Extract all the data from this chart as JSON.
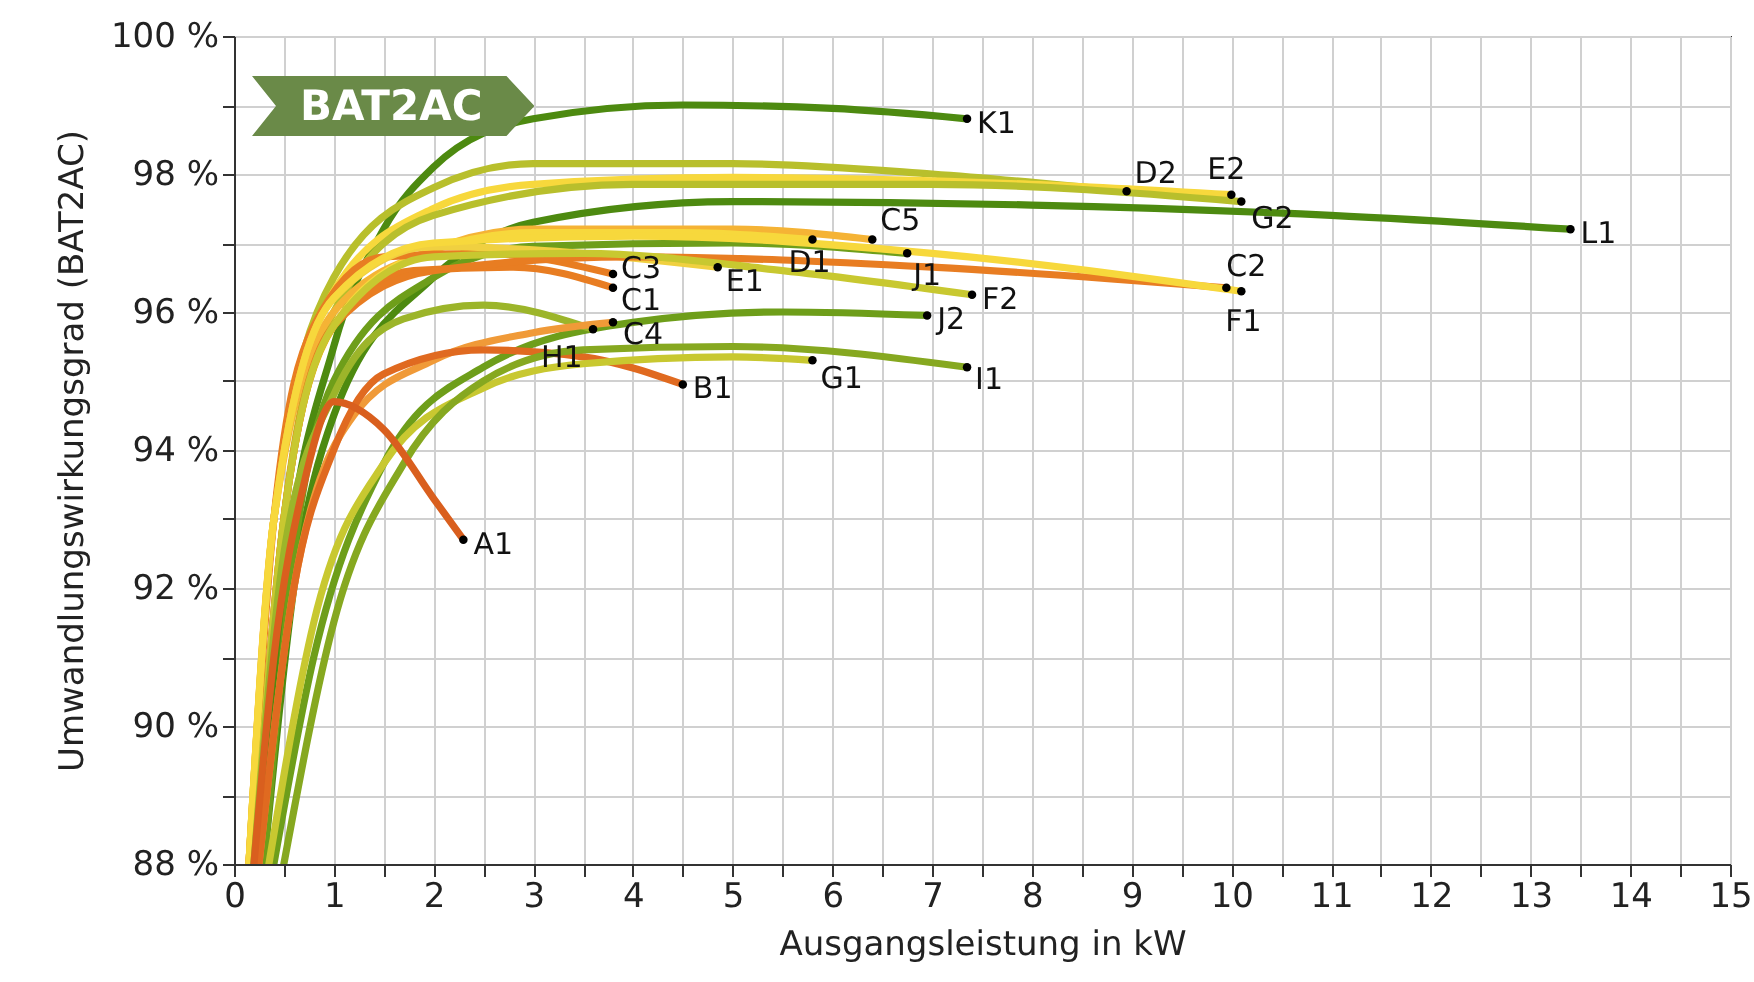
{
  "chart_data": {
    "type": "line",
    "title": "BAT2AC",
    "xlabel": "Ausgangsleistung in kW",
    "ylabel": "Umwandlungswirkungsgrad (BAT2AC)",
    "xlim": [
      0,
      15
    ],
    "xticks": [
      0,
      {
        "value": 0.5,
        "label": null
      },
      1,
      {
        "value": 1.5,
        "label": null
      },
      2,
      {
        "value": 2.5,
        "label": null
      },
      3,
      {
        "value": 3.5,
        "label": null
      },
      4,
      {
        "value": 4.5,
        "label": null
      },
      5,
      {
        "value": 5.5,
        "label": null
      },
      6,
      {
        "value": 6.5,
        "label": null
      },
      7,
      {
        "value": 7.5,
        "label": null
      },
      8,
      {
        "value": 8.5,
        "label": null
      },
      9,
      {
        "value": 9.5,
        "label": null
      },
      10,
      {
        "value": 10.5,
        "label": null
      },
      11,
      {
        "value": 11.5,
        "label": null
      },
      12,
      {
        "value": 12.5,
        "label": null
      },
      13,
      {
        "value": 13.5,
        "label": null
      },
      14,
      {
        "value": 14.5,
        "label": null
      },
      15
    ],
    "ylim": [
      88,
      100
    ],
    "yticks": [
      {
        "value": 88,
        "label": "88 %"
      },
      {
        "value": 89,
        "label": null
      },
      {
        "value": 90,
        "label": "90 %"
      },
      {
        "value": 91,
        "label": null
      },
      {
        "value": 92,
        "label": "92 %"
      },
      {
        "value": 93,
        "label": null
      },
      {
        "value": 94,
        "label": "94 %"
      },
      {
        "value": 95,
        "label": null
      },
      {
        "value": 96,
        "label": "96 %"
      },
      {
        "value": 97,
        "label": null
      },
      {
        "value": 98,
        "label": "98 %"
      },
      {
        "value": 99,
        "label": null
      },
      {
        "value": 100,
        "label": "100 %"
      }
    ],
    "grid": true,
    "line_style": "solid",
    "series": [
      {
        "name": "K1",
        "color": "#4d8a10",
        "x": [
          0.25,
          0.5,
          1,
          1.5,
          2,
          3,
          4.5,
          6,
          7.35
        ],
        "values": [
          88,
          92,
          95.5,
          97.2,
          98.1,
          98.8,
          99.0,
          98.95,
          98.8
        ]
      },
      {
        "name": "D2",
        "color": "#b8bf2c",
        "x": [
          0.15,
          0.4,
          1,
          2,
          3,
          5,
          7,
          8.95
        ],
        "values": [
          88,
          93,
          96.5,
          97.8,
          98.15,
          98.15,
          98,
          97.75
        ]
      },
      {
        "name": "E2",
        "color": "#f7d83c",
        "x": [
          0.15,
          0.4,
          1,
          2,
          3,
          5,
          8,
          10
        ],
        "values": [
          88,
          93,
          96.3,
          97.5,
          97.85,
          97.95,
          97.85,
          97.7
        ]
      },
      {
        "name": "G2",
        "color": "#b8bf2c",
        "x": [
          0.2,
          0.5,
          1,
          2,
          4,
          7,
          10.1
        ],
        "values": [
          88,
          93,
          96,
          97.4,
          97.85,
          97.85,
          97.6
        ]
      },
      {
        "name": "L1",
        "color": "#4d8a10",
        "x": [
          0.3,
          0.6,
          1,
          2,
          3,
          5,
          8,
          11,
          13.4
        ],
        "values": [
          88,
          92,
          94.5,
          96.5,
          97.3,
          97.6,
          97.55,
          97.4,
          97.2
        ]
      },
      {
        "name": "C5",
        "color": "#f5b335",
        "x": [
          0.15,
          0.4,
          1,
          2,
          3,
          5,
          6.4
        ],
        "values": [
          88,
          93,
          96,
          96.9,
          97.2,
          97.2,
          97.05
        ]
      },
      {
        "name": "D1",
        "color": "#f7d83c",
        "x": [
          0.2,
          0.5,
          1,
          2,
          3,
          4.5,
          5.8
        ],
        "values": [
          88,
          93,
          95.8,
          96.9,
          97.15,
          97.15,
          97.05
        ]
      },
      {
        "name": "J1",
        "color": "#6e9e1a",
        "x": [
          0.3,
          0.6,
          1,
          2,
          3,
          5,
          6.75
        ],
        "values": [
          88,
          92.5,
          95,
          96.5,
          96.95,
          97,
          96.85
        ]
      },
      {
        "name": "C3",
        "color": "#e87d22",
        "x": [
          0.15,
          0.4,
          0.8,
          1.5,
          2.5,
          3.8
        ],
        "values": [
          88,
          93,
          95.8,
          96.8,
          96.85,
          96.55
        ]
      },
      {
        "name": "C1",
        "color": "#e87d22",
        "x": [
          0.2,
          0.5,
          1,
          1.8,
          2.8,
          3.8
        ],
        "values": [
          88,
          93,
          95.8,
          96.6,
          96.65,
          96.35
        ]
      },
      {
        "name": "E1",
        "color": "#f0d040",
        "x": [
          0.15,
          0.4,
          1,
          2,
          3,
          4.85
        ],
        "values": [
          88,
          93,
          96.2,
          96.95,
          96.9,
          96.65
        ]
      },
      {
        "name": "C2",
        "color": "#e87d22",
        "x": [
          0.2,
          0.5,
          1,
          2,
          4,
          7,
          9.95
        ],
        "values": [
          88,
          93,
          95.8,
          96.6,
          96.8,
          96.65,
          96.35
        ]
      },
      {
        "name": "F1",
        "color": "#f7d83c",
        "x": [
          0.15,
          0.4,
          1,
          2,
          4,
          7,
          10.1
        ],
        "values": [
          88,
          93,
          96.2,
          97,
          97.1,
          96.85,
          96.3
        ]
      },
      {
        "name": "F2",
        "color": "#c8c830",
        "x": [
          0.2,
          0.5,
          1,
          2,
          3.5,
          5.5,
          7.4
        ],
        "values": [
          88,
          93,
          95.8,
          96.8,
          96.85,
          96.6,
          96.25
        ]
      },
      {
        "name": "J2",
        "color": "#6e9e1a",
        "x": [
          0.4,
          0.8,
          1.5,
          2.5,
          4,
          5.5,
          6.95
        ],
        "values": [
          88,
          91,
          93.8,
          95.2,
          95.85,
          96,
          95.95
        ]
      },
      {
        "name": "H1",
        "color": "#9cb52a",
        "x": [
          0.2,
          0.5,
          1,
          1.7,
          2.5,
          3.6
        ],
        "values": [
          88,
          92.5,
          94.8,
          95.9,
          96.1,
          95.75
        ]
      },
      {
        "name": "C4",
        "color": "#f09a38",
        "x": [
          0.25,
          0.6,
          1.2,
          2,
          3,
          3.8
        ],
        "values": [
          88,
          92,
          94.5,
          95.3,
          95.7,
          95.85
        ]
      },
      {
        "name": "B1",
        "color": "#e06a20",
        "x": [
          0.25,
          0.6,
          1,
          1.5,
          2.5,
          3.5,
          4.5
        ],
        "values": [
          88,
          92,
          94,
          95.1,
          95.45,
          95.35,
          94.95
        ]
      },
      {
        "name": "G1",
        "color": "#c8c830",
        "x": [
          0.35,
          0.8,
          1.5,
          2.5,
          3.5,
          5,
          5.8
        ],
        "values": [
          88,
          91.5,
          93.8,
          94.9,
          95.25,
          95.35,
          95.3
        ]
      },
      {
        "name": "I1",
        "color": "#86a820",
        "x": [
          0.5,
          1,
          1.7,
          2.5,
          3.5,
          5,
          7.35
        ],
        "values": [
          88,
          91.5,
          93.8,
          95,
          95.45,
          95.5,
          95.2
        ]
      },
      {
        "name": "A1",
        "color": "#d95f1e",
        "x": [
          0.2,
          0.4,
          0.7,
          1,
          1.5,
          2,
          2.3
        ],
        "values": [
          88,
          91,
          93.5,
          94.7,
          94.3,
          93.3,
          92.7
        ]
      }
    ]
  }
}
